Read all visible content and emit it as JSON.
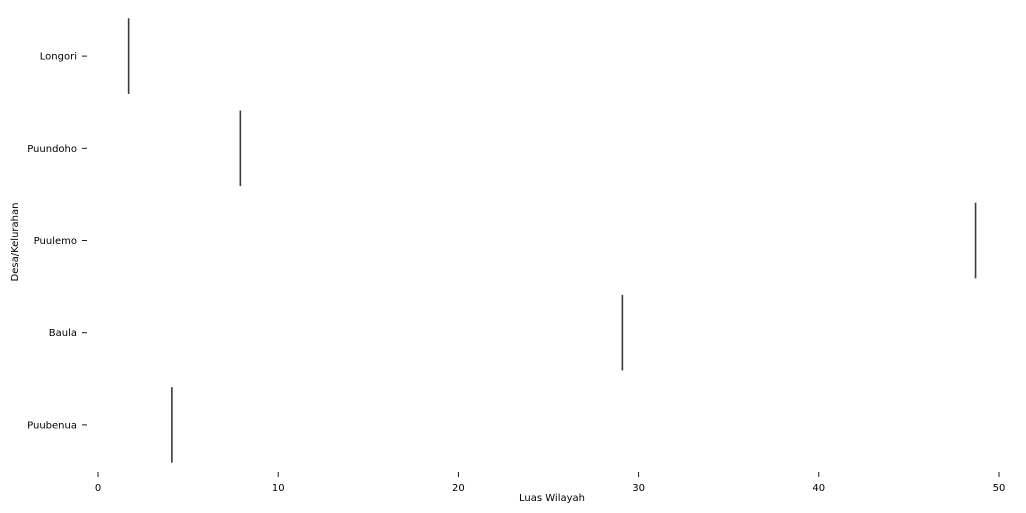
{
  "chart_data": {
    "type": "strip",
    "orientation": "horizontal",
    "categories": [
      "Longori",
      "Puundoho",
      "Puulemo",
      "Baula",
      "Puubenua"
    ],
    "values": [
      1.7,
      7.9,
      48.7,
      29.1,
      4.1
    ],
    "xlabel": "Luas Wilayah",
    "ylabel": "Desa/Kelurahan",
    "xlim": [
      0,
      50
    ],
    "xticks": [
      "0",
      "10",
      "20",
      "30",
      "40",
      "50"
    ],
    "grid": false,
    "mark_color": "#3a3a3a"
  }
}
